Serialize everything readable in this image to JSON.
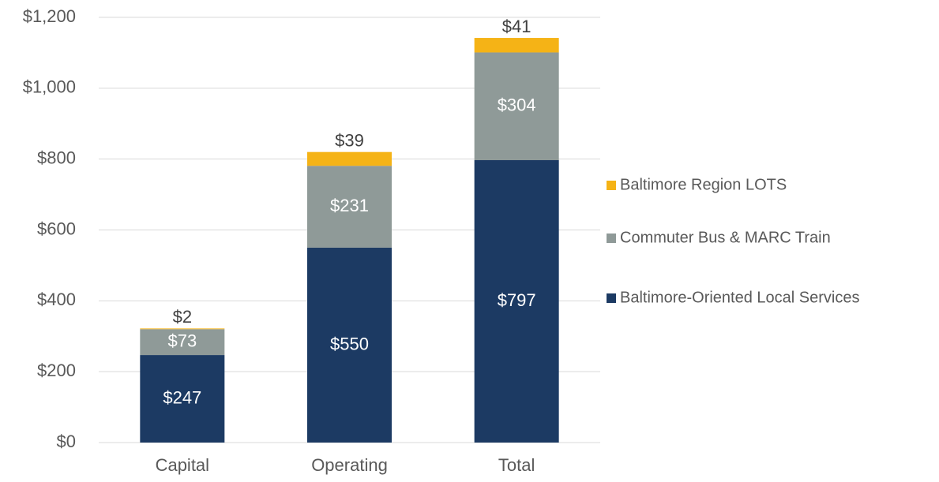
{
  "chart_data": {
    "type": "stacked_bar",
    "categories": [
      "Capital",
      "Operating",
      "Total"
    ],
    "series": [
      {
        "name": "Baltimore-Oriented Local Services",
        "color": "#1c3a63",
        "values": [
          247,
          550,
          797
        ],
        "value_labels": [
          "$247",
          "$550",
          "$797"
        ]
      },
      {
        "name": "Commuter Bus & MARC Train",
        "color": "#8f9a98",
        "values": [
          73,
          231,
          304
        ],
        "value_labels": [
          "$73",
          "$231",
          "$304"
        ]
      },
      {
        "name": "Baltimore Region LOTS",
        "color": "#f5b316",
        "values": [
          2,
          39,
          41
        ],
        "value_labels": [
          "$2",
          "$39",
          "$41"
        ]
      }
    ],
    "ylim": [
      0,
      1200
    ],
    "yticks": [
      {
        "value": 0,
        "label": "$0"
      },
      {
        "value": 200,
        "label": "$200"
      },
      {
        "value": 400,
        "label": "$400"
      },
      {
        "value": 600,
        "label": "$600"
      },
      {
        "value": 800,
        "label": "$800"
      },
      {
        "value": 1000,
        "label": "$1,000"
      },
      {
        "value": 1200,
        "label": "$1,200"
      }
    ],
    "grid": true,
    "legend": "right"
  }
}
